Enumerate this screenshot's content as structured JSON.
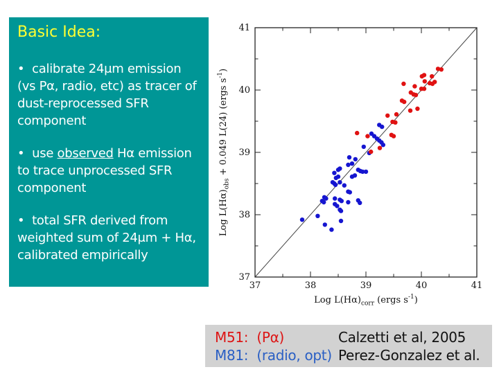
{
  "idea_box": {
    "bg_color": "#009696",
    "title": "Basic Idea:",
    "title_color": "#ffff33",
    "text_color": "#ffffff",
    "bullets": [
      {
        "pre": "•  calibrate 24μm emission (vs Pα, radio, etc) as tracer of dust-reprocessed SFR component",
        "underline": "",
        "post": ""
      },
      {
        "pre": "•  use ",
        "underline": "observed",
        "post": " Hα emission to trace unprocessed SFR component"
      },
      {
        "pre": "•  total SFR derived from weighted sum of 24μm + Hα, calibrated empirically",
        "underline": "",
        "post": ""
      }
    ]
  },
  "chart_data": {
    "type": "scatter",
    "title": "",
    "xlabel": "Log L(Hα)corr (ergs s-1)",
    "ylabel": "Log L(Hα)obs + 0.049 L(24) (ergs s-1)",
    "xlabel_parts": [
      {
        "t": "Log L(Hα)",
        "s": "n"
      },
      {
        "t": "corr",
        "s": "sub"
      },
      {
        "t": " (ergs s",
        "s": "n"
      },
      {
        "t": "-1",
        "s": "sup"
      },
      {
        "t": ")",
        "s": "n"
      }
    ],
    "ylabel_parts": [
      {
        "t": "Log L(Hα)",
        "s": "n"
      },
      {
        "t": "obs",
        "s": "sub"
      },
      {
        "t": " + 0.049 L(24)  (ergs s",
        "s": "n"
      },
      {
        "t": "-1",
        "s": "sup"
      },
      {
        "t": ")",
        "s": "n"
      }
    ],
    "xlim": [
      37,
      41
    ],
    "ylim": [
      37,
      41
    ],
    "x_ticks": [
      37,
      38,
      39,
      40,
      41
    ],
    "y_ticks": [
      37,
      38,
      39,
      40,
      41
    ],
    "minor_tick_step": 0.5,
    "grid": false,
    "frame_color": "#222222",
    "reference_line": {
      "from": [
        37,
        37
      ],
      "to": [
        41,
        41
      ],
      "color": "#444444"
    },
    "series": [
      {
        "id": "m51",
        "name": "M51 (Pα) — Calzetti et al, 2005",
        "color": "#e01212",
        "points": [
          [
            40.3,
            40.34
          ],
          [
            40.36,
            40.33
          ],
          [
            40.19,
            40.22
          ],
          [
            40.01,
            40.22
          ],
          [
            40.05,
            40.24
          ],
          [
            40.24,
            40.13
          ],
          [
            40.15,
            40.11
          ],
          [
            40.2,
            40.1
          ],
          [
            40.06,
            40.14
          ],
          [
            39.88,
            40.06
          ],
          [
            39.68,
            40.1
          ],
          [
            40.0,
            40.02
          ],
          [
            40.05,
            40.02
          ],
          [
            39.81,
            39.96
          ],
          [
            39.86,
            39.93
          ],
          [
            39.9,
            39.92
          ],
          [
            39.65,
            39.83
          ],
          [
            39.69,
            39.81
          ],
          [
            39.93,
            39.7
          ],
          [
            39.8,
            39.67
          ],
          [
            39.39,
            39.59
          ],
          [
            39.55,
            39.61
          ],
          [
            39.48,
            39.49
          ],
          [
            39.53,
            39.48
          ],
          [
            39.46,
            39.28
          ],
          [
            39.5,
            39.26
          ],
          [
            38.84,
            39.31
          ],
          [
            39.03,
            39.26
          ],
          [
            39.25,
            39.07
          ],
          [
            39.09,
            39.01
          ]
        ]
      },
      {
        "id": "m81",
        "name": "M81 (radio, opt) — Perez-Gonzalez et al.",
        "color": "#1515d0",
        "points": [
          [
            39.24,
            39.44
          ],
          [
            39.29,
            39.41
          ],
          [
            39.1,
            39.3
          ],
          [
            39.15,
            39.26
          ],
          [
            39.2,
            39.22
          ],
          [
            39.24,
            39.19
          ],
          [
            39.28,
            39.16
          ],
          [
            39.31,
            39.12
          ],
          [
            38.96,
            39.09
          ],
          [
            39.06,
            38.99
          ],
          [
            38.7,
            38.92
          ],
          [
            38.81,
            38.89
          ],
          [
            38.68,
            38.8
          ],
          [
            38.75,
            38.82
          ],
          [
            38.5,
            38.72
          ],
          [
            38.43,
            38.67
          ],
          [
            38.86,
            38.72
          ],
          [
            38.9,
            38.7
          ],
          [
            38.94,
            38.69
          ],
          [
            39.0,
            38.69
          ],
          [
            38.75,
            38.61
          ],
          [
            38.8,
            38.63
          ],
          [
            38.46,
            38.59
          ],
          [
            38.5,
            38.61
          ],
          [
            38.4,
            38.52
          ],
          [
            38.43,
            38.5
          ],
          [
            38.45,
            38.48
          ],
          [
            38.53,
            38.52
          ],
          [
            38.61,
            38.47
          ],
          [
            38.68,
            38.37
          ],
          [
            38.71,
            38.36
          ],
          [
            38.53,
            38.74
          ],
          [
            38.25,
            38.28
          ],
          [
            38.28,
            38.26
          ],
          [
            38.21,
            38.22
          ],
          [
            38.24,
            38.2
          ],
          [
            38.44,
            38.26
          ],
          [
            38.53,
            38.24
          ],
          [
            38.56,
            38.22
          ],
          [
            38.68,
            38.2
          ],
          [
            38.86,
            38.23
          ],
          [
            38.89,
            38.19
          ],
          [
            38.44,
            38.17
          ],
          [
            38.48,
            38.14
          ],
          [
            38.53,
            38.08
          ],
          [
            38.55,
            38.06
          ],
          [
            38.13,
            37.98
          ],
          [
            37.85,
            37.92
          ],
          [
            38.55,
            37.9
          ],
          [
            38.26,
            37.84
          ],
          [
            38.38,
            37.76
          ]
        ]
      }
    ]
  },
  "caption_box": {
    "bg_color": "#d2d2d2",
    "rows": [
      {
        "label": "M51:  (Pα)",
        "label_color": "#dd1515",
        "ref": "Calzetti et al, 2005"
      },
      {
        "label": "M81:  (radio, opt)",
        "label_color": "#2a5fc4",
        "ref": "Perez-Gonzalez et al."
      }
    ]
  }
}
